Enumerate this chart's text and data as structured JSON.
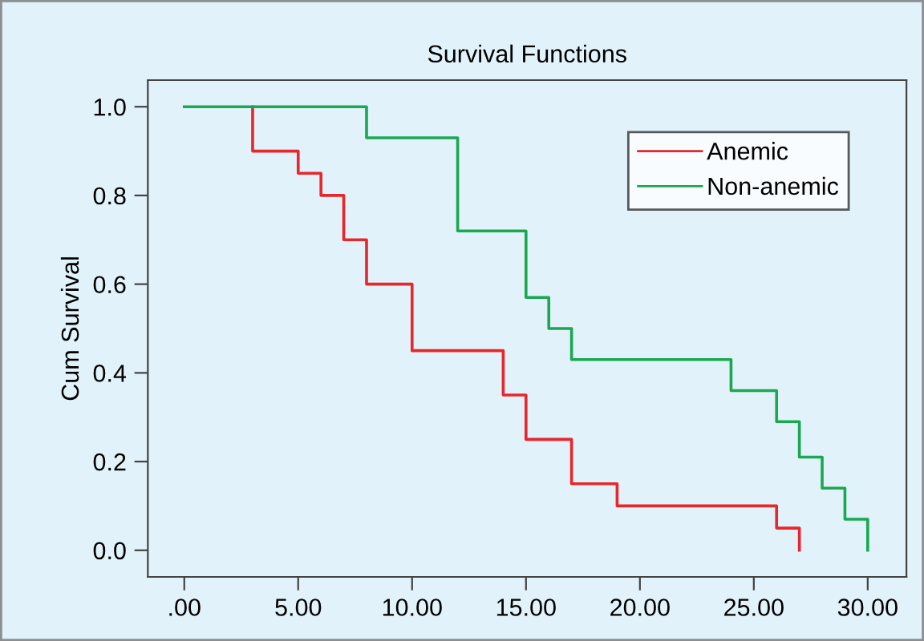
{
  "chart_data": {
    "type": "step",
    "title": "Survival Functions",
    "ylabel": "Cum Survival",
    "series": [
      {
        "name": "Anemic",
        "color": "#e8262b",
        "x": [
          3,
          3,
          5,
          6,
          7,
          8,
          10,
          14,
          15,
          17,
          19,
          26,
          27
        ],
        "values": [
          1.0,
          0.9,
          0.85,
          0.8,
          0.7,
          0.6,
          0.45,
          0.35,
          0.25,
          0.15,
          0.1,
          0.05,
          0.0
        ]
      },
      {
        "name": "Non-anemic",
        "color": "#1aa850",
        "x": [
          0,
          8,
          12,
          15,
          16,
          17,
          24,
          26,
          27,
          28,
          29,
          30
        ],
        "values": [
          1.0,
          0.93,
          0.72,
          0.57,
          0.5,
          0.43,
          0.36,
          0.29,
          0.21,
          0.14,
          0.07,
          0.0
        ]
      }
    ],
    "xlim": [
      -1.6,
      31.7
    ],
    "ylim": [
      -0.06,
      1.06
    ],
    "xticks": [
      {
        "value": 0,
        "label": ".00"
      },
      {
        "value": 5,
        "label": "5.00"
      },
      {
        "value": 10,
        "label": "10.00"
      },
      {
        "value": 15,
        "label": "15.00"
      },
      {
        "value": 20,
        "label": "20.00"
      },
      {
        "value": 25,
        "label": "25.00"
      },
      {
        "value": 30,
        "label": "30.00"
      }
    ],
    "yticks": [
      {
        "value": 0,
        "label": "0.0"
      },
      {
        "value": 0.2,
        "label": "0.2"
      },
      {
        "value": 0.4,
        "label": "0.4"
      },
      {
        "value": 0.6,
        "label": "0.6"
      },
      {
        "value": 0.8,
        "label": "0.8"
      },
      {
        "value": 1.0,
        "label": "1.0"
      }
    ],
    "legend": "top right",
    "grid": false
  }
}
